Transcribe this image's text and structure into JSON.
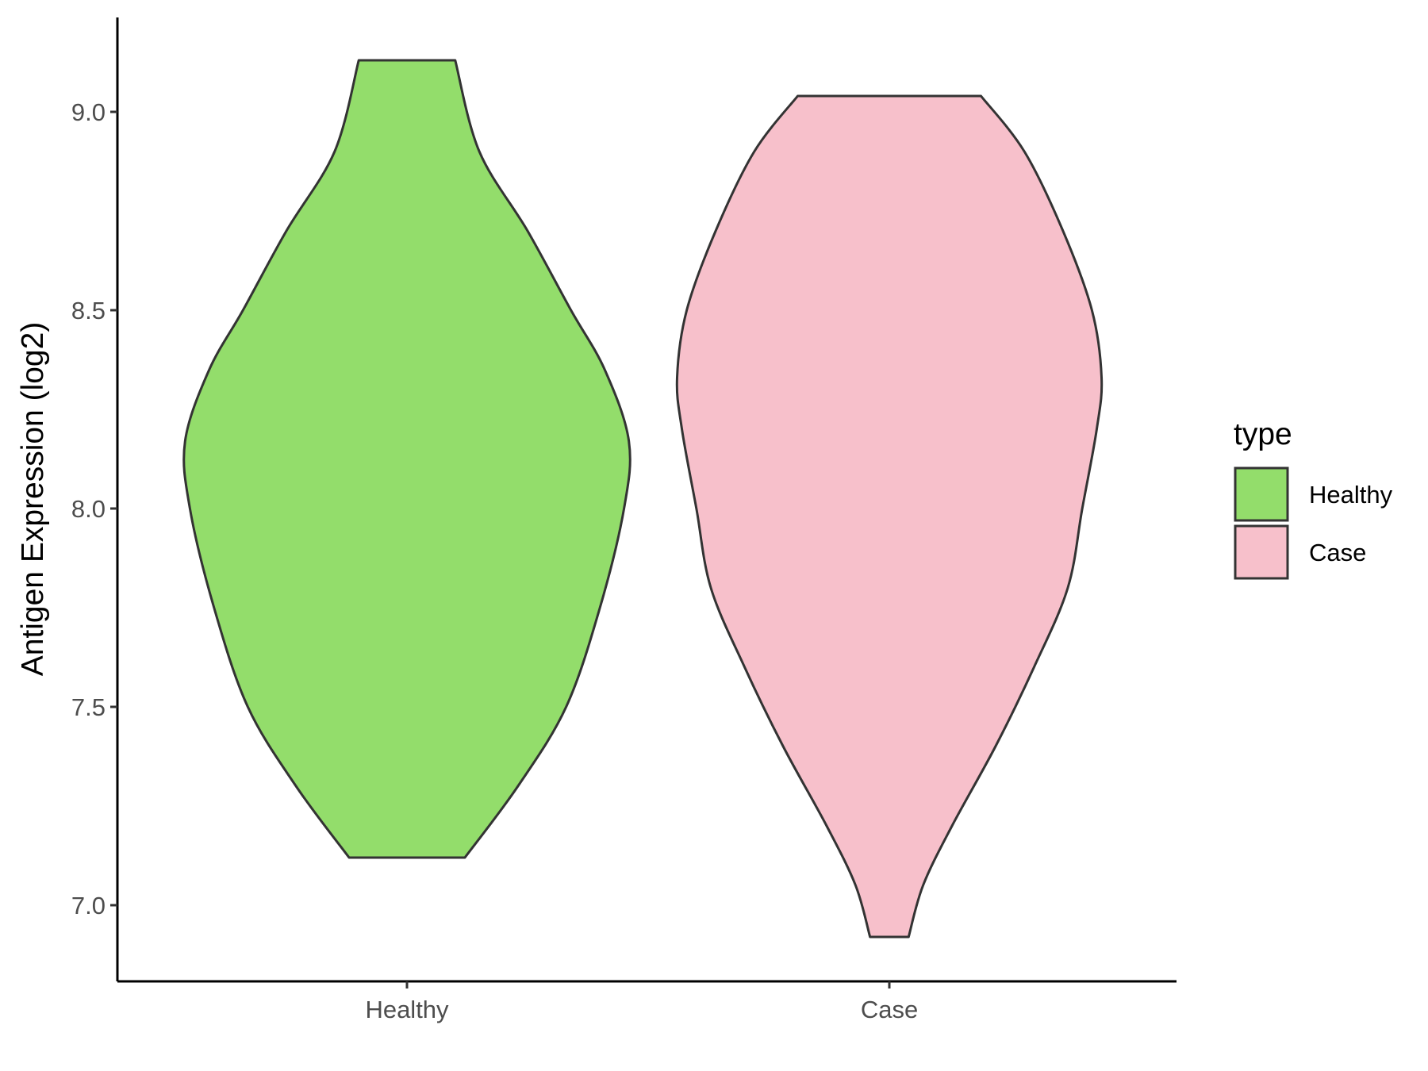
{
  "chart_data": {
    "type": "violin",
    "title": "",
    "xlabel": "",
    "ylabel": "Antigen Expression (log2)",
    "categories": [
      "Healthy",
      "Case"
    ],
    "ylim": [
      6.81,
      9.24
    ],
    "y_ticks": [
      7.0,
      7.5,
      8.0,
      8.5,
      9.0
    ],
    "y_tick_labels": [
      "7.0",
      "7.5",
      "8.0",
      "8.5",
      "9.0"
    ],
    "grid": false,
    "legend": {
      "title": "type",
      "position": "right",
      "entries": [
        "Healthy",
        "Case"
      ]
    },
    "series": [
      {
        "name": "Healthy",
        "color": "#93DD6B",
        "min": 7.12,
        "max": 9.13,
        "density_profile": [
          {
            "y": 7.12,
            "half_width": 0.12
          },
          {
            "y": 7.3,
            "half_width": 0.23
          },
          {
            "y": 7.5,
            "half_width": 0.33
          },
          {
            "y": 7.75,
            "half_width": 0.4
          },
          {
            "y": 8.0,
            "half_width": 0.45
          },
          {
            "y": 8.17,
            "half_width": 0.46
          },
          {
            "y": 8.35,
            "half_width": 0.41
          },
          {
            "y": 8.5,
            "half_width": 0.34
          },
          {
            "y": 8.7,
            "half_width": 0.25
          },
          {
            "y": 8.9,
            "half_width": 0.15
          },
          {
            "y": 9.13,
            "half_width": 0.1
          }
        ]
      },
      {
        "name": "Case",
        "color": "#F7C0CB",
        "min": 6.92,
        "max": 9.04,
        "density_profile": [
          {
            "y": 6.92,
            "half_width": 0.04
          },
          {
            "y": 7.05,
            "half_width": 0.07
          },
          {
            "y": 7.2,
            "half_width": 0.13
          },
          {
            "y": 7.4,
            "half_width": 0.22
          },
          {
            "y": 7.6,
            "half_width": 0.3
          },
          {
            "y": 7.8,
            "half_width": 0.37
          },
          {
            "y": 8.0,
            "half_width": 0.4
          },
          {
            "y": 8.2,
            "half_width": 0.43
          },
          {
            "y": 8.33,
            "half_width": 0.44
          },
          {
            "y": 8.5,
            "half_width": 0.42
          },
          {
            "y": 8.7,
            "half_width": 0.36
          },
          {
            "y": 8.9,
            "half_width": 0.28
          },
          {
            "y": 9.04,
            "half_width": 0.19
          }
        ]
      }
    ]
  }
}
